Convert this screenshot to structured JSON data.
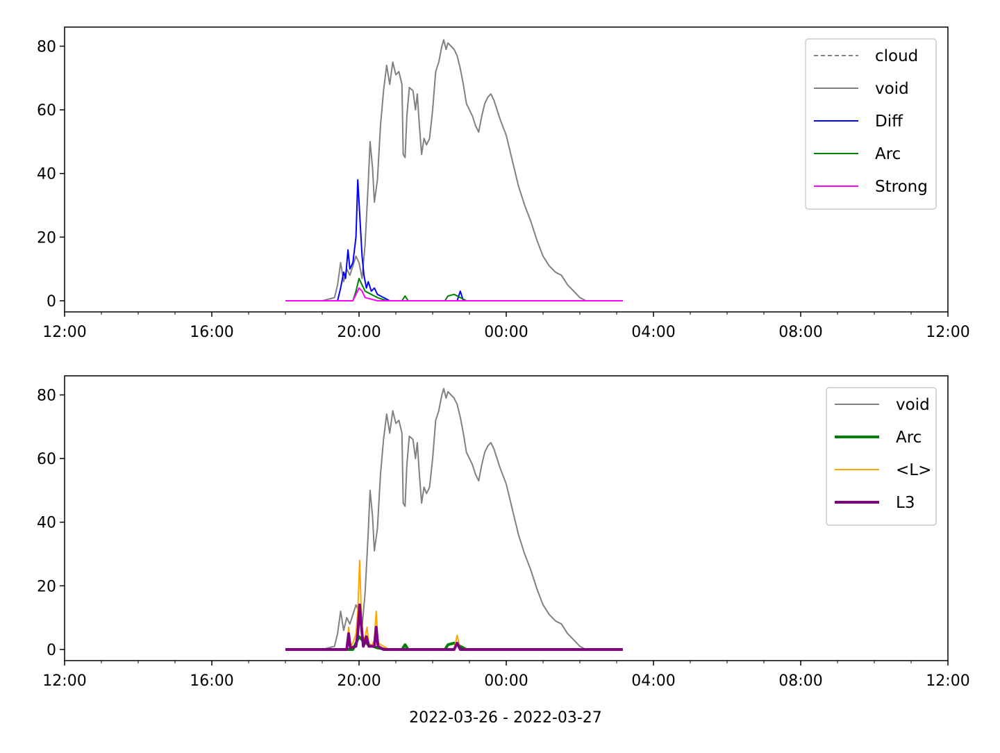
{
  "figure": {
    "date_range_label": "2022-03-26 - 2022-03-27"
  },
  "chart_data": [
    {
      "type": "line",
      "xlabel": "",
      "ylabel": "",
      "xlim": [
        "2022-03-26 12:00",
        "2022-03-27 12:00"
      ],
      "ylim": [
        -3.5,
        86
      ],
      "x_ticks": [
        "12:00",
        "16:00",
        "20:00",
        "00:00",
        "04:00",
        "08:00",
        "12:00"
      ],
      "y_ticks": [
        0,
        20,
        40,
        60,
        80
      ],
      "grid": false,
      "legend_position": "upper-right",
      "series": [
        {
          "name": "cloud",
          "color": "#808080",
          "style": "dashed",
          "points": []
        },
        {
          "name": "void",
          "color": "#808080",
          "style": "solid",
          "points": [
            [
              "2022-03-26 18:00",
              0
            ],
            [
              "2022-03-26 19:00",
              0
            ],
            [
              "2022-03-26 19:20",
              1
            ],
            [
              "2022-03-26 19:25",
              5
            ],
            [
              "2022-03-26 19:30",
              12
            ],
            [
              "2022-03-26 19:35",
              6
            ],
            [
              "2022-03-26 19:40",
              10
            ],
            [
              "2022-03-26 19:45",
              8
            ],
            [
              "2022-03-26 19:50",
              11
            ],
            [
              "2022-03-26 19:55",
              14
            ],
            [
              "2022-03-26 20:00",
              12
            ],
            [
              "2022-03-26 20:05",
              7
            ],
            [
              "2022-03-26 20:10",
              18
            ],
            [
              "2022-03-26 20:15",
              37
            ],
            [
              "2022-03-26 20:18",
              50
            ],
            [
              "2022-03-26 20:22",
              42
            ],
            [
              "2022-03-26 20:25",
              31
            ],
            [
              "2022-03-26 20:30",
              38
            ],
            [
              "2022-03-26 20:35",
              55
            ],
            [
              "2022-03-26 20:40",
              66
            ],
            [
              "2022-03-26 20:45",
              74
            ],
            [
              "2022-03-26 20:50",
              68
            ],
            [
              "2022-03-26 20:55",
              75
            ],
            [
              "2022-03-26 21:00",
              71
            ],
            [
              "2022-03-26 21:05",
              72
            ],
            [
              "2022-03-26 21:10",
              68
            ],
            [
              "2022-03-26 21:12",
              46
            ],
            [
              "2022-03-26 21:15",
              45
            ],
            [
              "2022-03-26 21:18",
              58
            ],
            [
              "2022-03-26 21:22",
              67
            ],
            [
              "2022-03-26 21:28",
              66
            ],
            [
              "2022-03-26 21:32",
              60
            ],
            [
              "2022-03-26 21:35",
              65
            ],
            [
              "2022-03-26 21:38",
              56
            ],
            [
              "2022-03-26 21:42",
              46
            ],
            [
              "2022-03-26 21:46",
              51
            ],
            [
              "2022-03-26 21:50",
              49
            ],
            [
              "2022-03-26 21:55",
              51
            ],
            [
              "2022-03-26 22:00",
              60
            ],
            [
              "2022-03-26 22:05",
              72
            ],
            [
              "2022-03-26 22:10",
              75
            ],
            [
              "2022-03-26 22:15",
              80
            ],
            [
              "2022-03-26 22:18",
              82
            ],
            [
              "2022-03-26 22:22",
              79
            ],
            [
              "2022-03-26 22:25",
              81
            ],
            [
              "2022-03-26 22:30",
              80
            ],
            [
              "2022-03-26 22:35",
              79
            ],
            [
              "2022-03-26 22:40",
              77
            ],
            [
              "2022-03-26 22:45",
              73
            ],
            [
              "2022-03-26 22:50",
              68
            ],
            [
              "2022-03-26 22:55",
              62
            ],
            [
              "2022-03-26 23:00",
              60
            ],
            [
              "2022-03-26 23:05",
              58
            ],
            [
              "2022-03-26 23:10",
              55
            ],
            [
              "2022-03-26 23:15",
              53
            ],
            [
              "2022-03-26 23:20",
              58
            ],
            [
              "2022-03-26 23:25",
              62
            ],
            [
              "2022-03-26 23:30",
              64
            ],
            [
              "2022-03-26 23:35",
              65
            ],
            [
              "2022-03-26 23:40",
              63
            ],
            [
              "2022-03-26 23:50",
              57
            ],
            [
              "2022-03-27 00:00",
              52
            ],
            [
              "2022-03-27 00:10",
              44
            ],
            [
              "2022-03-27 00:20",
              36
            ],
            [
              "2022-03-27 00:30",
              30
            ],
            [
              "2022-03-27 00:40",
              25
            ],
            [
              "2022-03-27 00:50",
              19
            ],
            [
              "2022-03-27 01:00",
              14
            ],
            [
              "2022-03-27 01:10",
              11
            ],
            [
              "2022-03-27 01:20",
              9
            ],
            [
              "2022-03-27 01:30",
              8
            ],
            [
              "2022-03-27 01:40",
              5
            ],
            [
              "2022-03-27 01:50",
              3
            ],
            [
              "2022-03-27 02:00",
              1
            ],
            [
              "2022-03-27 02:10",
              0
            ],
            [
              "2022-03-27 03:10",
              0
            ]
          ]
        },
        {
          "name": "Diff",
          "color": "#0000ff",
          "style": "solid",
          "points": [
            [
              "2022-03-26 18:00",
              0
            ],
            [
              "2022-03-26 19:25",
              0
            ],
            [
              "2022-03-26 19:30",
              4
            ],
            [
              "2022-03-26 19:35",
              9
            ],
            [
              "2022-03-26 19:38",
              7
            ],
            [
              "2022-03-26 19:42",
              16
            ],
            [
              "2022-03-26 19:45",
              10
            ],
            [
              "2022-03-26 19:50",
              12
            ],
            [
              "2022-03-26 19:55",
              20
            ],
            [
              "2022-03-26 19:58",
              38
            ],
            [
              "2022-03-26 20:02",
              24
            ],
            [
              "2022-03-26 20:05",
              14
            ],
            [
              "2022-03-26 20:08",
              8
            ],
            [
              "2022-03-26 20:12",
              4
            ],
            [
              "2022-03-26 20:15",
              6
            ],
            [
              "2022-03-26 20:20",
              3
            ],
            [
              "2022-03-26 20:25",
              4
            ],
            [
              "2022-03-26 20:30",
              2
            ],
            [
              "2022-03-26 20:40",
              1
            ],
            [
              "2022-03-26 20:50",
              0
            ],
            [
              "2022-03-26 22:40",
              0
            ],
            [
              "2022-03-26 22:45",
              3
            ],
            [
              "2022-03-26 22:50",
              0
            ],
            [
              "2022-03-27 03:10",
              0
            ]
          ]
        },
        {
          "name": "Arc",
          "color": "#008000",
          "style": "solid",
          "points": [
            [
              "2022-03-26 18:00",
              0
            ],
            [
              "2022-03-26 19:50",
              0
            ],
            [
              "2022-03-26 19:55",
              3
            ],
            [
              "2022-03-26 20:00",
              7
            ],
            [
              "2022-03-26 20:05",
              5
            ],
            [
              "2022-03-26 20:10",
              3
            ],
            [
              "2022-03-26 20:20",
              2
            ],
            [
              "2022-03-26 20:30",
              1
            ],
            [
              "2022-03-26 20:45",
              0
            ],
            [
              "2022-03-26 21:10",
              0
            ],
            [
              "2022-03-26 21:15",
              1.5
            ],
            [
              "2022-03-26 21:20",
              0
            ],
            [
              "2022-03-26 22:20",
              0
            ],
            [
              "2022-03-26 22:25",
              1.5
            ],
            [
              "2022-03-26 22:35",
              2
            ],
            [
              "2022-03-26 22:45",
              1
            ],
            [
              "2022-03-26 22:55",
              0
            ],
            [
              "2022-03-27 03:10",
              0
            ]
          ]
        },
        {
          "name": "Strong",
          "color": "#ff00ff",
          "style": "solid",
          "points": [
            [
              "2022-03-26 18:00",
              0
            ],
            [
              "2022-03-26 19:50",
              0
            ],
            [
              "2022-03-26 19:55",
              2
            ],
            [
              "2022-03-26 20:00",
              4
            ],
            [
              "2022-03-26 20:05",
              3
            ],
            [
              "2022-03-26 20:10",
              1
            ],
            [
              "2022-03-26 20:20",
              0.5
            ],
            [
              "2022-03-26 20:30",
              0
            ],
            [
              "2022-03-27 03:10",
              0
            ]
          ]
        }
      ]
    },
    {
      "type": "line",
      "xlabel": "2022-03-26 - 2022-03-27",
      "ylabel": "",
      "xlim": [
        "2022-03-26 12:00",
        "2022-03-27 12:00"
      ],
      "ylim": [
        -3.5,
        86
      ],
      "x_ticks": [
        "12:00",
        "16:00",
        "20:00",
        "00:00",
        "04:00",
        "08:00",
        "12:00"
      ],
      "y_ticks": [
        0,
        20,
        40,
        60,
        80
      ],
      "grid": false,
      "legend_position": "upper-right",
      "series": [
        {
          "name": "void",
          "color": "#808080",
          "style": "solid",
          "points": "same as top panel void series"
        },
        {
          "name": "Arc",
          "color": "#008000",
          "style": "solid-thick",
          "points": [
            [
              "2022-03-26 18:00",
              0
            ],
            [
              "2022-03-26 19:50",
              0
            ],
            [
              "2022-03-26 19:55",
              2
            ],
            [
              "2022-03-26 20:00",
              4
            ],
            [
              "2022-03-26 20:05",
              3
            ],
            [
              "2022-03-26 20:15",
              1.5
            ],
            [
              "2022-03-26 20:30",
              0.5
            ],
            [
              "2022-03-26 20:45",
              0
            ],
            [
              "2022-03-26 21:10",
              0
            ],
            [
              "2022-03-26 21:15",
              1.5
            ],
            [
              "2022-03-26 21:20",
              0
            ],
            [
              "2022-03-26 22:20",
              0
            ],
            [
              "2022-03-26 22:25",
              1.5
            ],
            [
              "2022-03-26 22:35",
              2
            ],
            [
              "2022-03-26 22:45",
              1
            ],
            [
              "2022-03-26 22:55",
              0
            ],
            [
              "2022-03-27 03:10",
              0
            ]
          ]
        },
        {
          "name": "<L>",
          "color": "#ffa500",
          "style": "solid",
          "points": [
            [
              "2022-03-26 18:00",
              0
            ],
            [
              "2022-03-26 19:40",
              0
            ],
            [
              "2022-03-26 19:43",
              7
            ],
            [
              "2022-03-26 19:46",
              1
            ],
            [
              "2022-03-26 19:50",
              2
            ],
            [
              "2022-03-26 19:55",
              5
            ],
            [
              "2022-03-26 19:58",
              12
            ],
            [
              "2022-03-26 20:01",
              28
            ],
            [
              "2022-03-26 20:04",
              10
            ],
            [
              "2022-03-26 20:07",
              3
            ],
            [
              "2022-03-26 20:10",
              4
            ],
            [
              "2022-03-26 20:13",
              7
            ],
            [
              "2022-03-26 20:16",
              2
            ],
            [
              "2022-03-26 20:20",
              1
            ],
            [
              "2022-03-26 20:25",
              3
            ],
            [
              "2022-03-26 20:28",
              12
            ],
            [
              "2022-03-26 20:31",
              2
            ],
            [
              "2022-03-26 20:40",
              1
            ],
            [
              "2022-03-26 20:50",
              0
            ],
            [
              "2022-03-26 22:35",
              0
            ],
            [
              "2022-03-26 22:40",
              4.5
            ],
            [
              "2022-03-26 22:45",
              0
            ],
            [
              "2022-03-27 03:10",
              0
            ]
          ]
        },
        {
          "name": "L3",
          "color": "#800080",
          "style": "solid-thick",
          "points": [
            [
              "2022-03-26 18:00",
              0
            ],
            [
              "2022-03-26 19:40",
              0
            ],
            [
              "2022-03-26 19:43",
              5
            ],
            [
              "2022-03-26 19:46",
              0.5
            ],
            [
              "2022-03-26 19:55",
              1
            ],
            [
              "2022-03-26 19:58",
              5
            ],
            [
              "2022-03-26 20:01",
              14
            ],
            [
              "2022-03-26 20:04",
              7
            ],
            [
              "2022-03-26 20:07",
              1
            ],
            [
              "2022-03-26 20:12",
              4
            ],
            [
              "2022-03-26 20:16",
              1
            ],
            [
              "2022-03-26 20:25",
              1
            ],
            [
              "2022-03-26 20:28",
              7
            ],
            [
              "2022-03-26 20:31",
              1
            ],
            [
              "2022-03-26 20:40",
              0
            ],
            [
              "2022-03-26 22:35",
              0
            ],
            [
              "2022-03-26 22:40",
              2
            ],
            [
              "2022-03-26 22:45",
              0
            ],
            [
              "2022-03-27 03:10",
              0
            ]
          ]
        }
      ]
    }
  ]
}
